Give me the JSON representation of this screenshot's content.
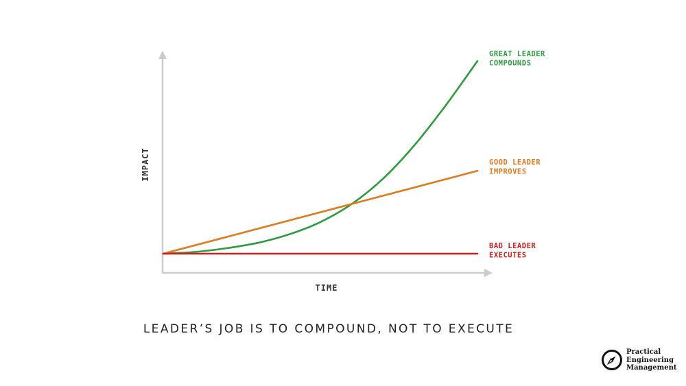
{
  "chart_data": {
    "type": "line",
    "xlabel": "TIME",
    "ylabel": "IMPACT",
    "xlim": [
      0,
      10
    ],
    "ylim": [
      0,
      10
    ],
    "grid": false,
    "legend": "right-end labels",
    "series": [
      {
        "key": "great",
        "label_lines": [
          "GREAT LEADER",
          "COMPOUNDS"
        ],
        "color": "#2e9a3f",
        "x": [
          0,
          1,
          2,
          3,
          4,
          5,
          6,
          7,
          8,
          9,
          10
        ],
        "y": [
          0,
          0.09,
          0.28,
          0.56,
          1.0,
          1.64,
          2.58,
          3.9,
          5.64,
          7.72,
          10.0
        ]
      },
      {
        "key": "good",
        "label_lines": [
          "GOOD LEADER",
          "IMPROVES"
        ],
        "color": "#e07a1f",
        "x": [
          0,
          10
        ],
        "y": [
          0,
          4.3
        ]
      },
      {
        "key": "bad",
        "label_lines": [
          "BAD LEADER",
          "EXECUTES"
        ],
        "color": "#cc1f1f",
        "x": [
          0,
          10
        ],
        "y": [
          0,
          0
        ]
      }
    ]
  },
  "caption": "LEADER’S JOB IS TO COMPOUND, NOT TO EXECUTE",
  "logo": {
    "line1": "Practical",
    "line2": "Engineering",
    "line3": "Management",
    "icon": "compass-icon"
  },
  "colors": {
    "axis": "#cccccc",
    "text": "#333333"
  }
}
